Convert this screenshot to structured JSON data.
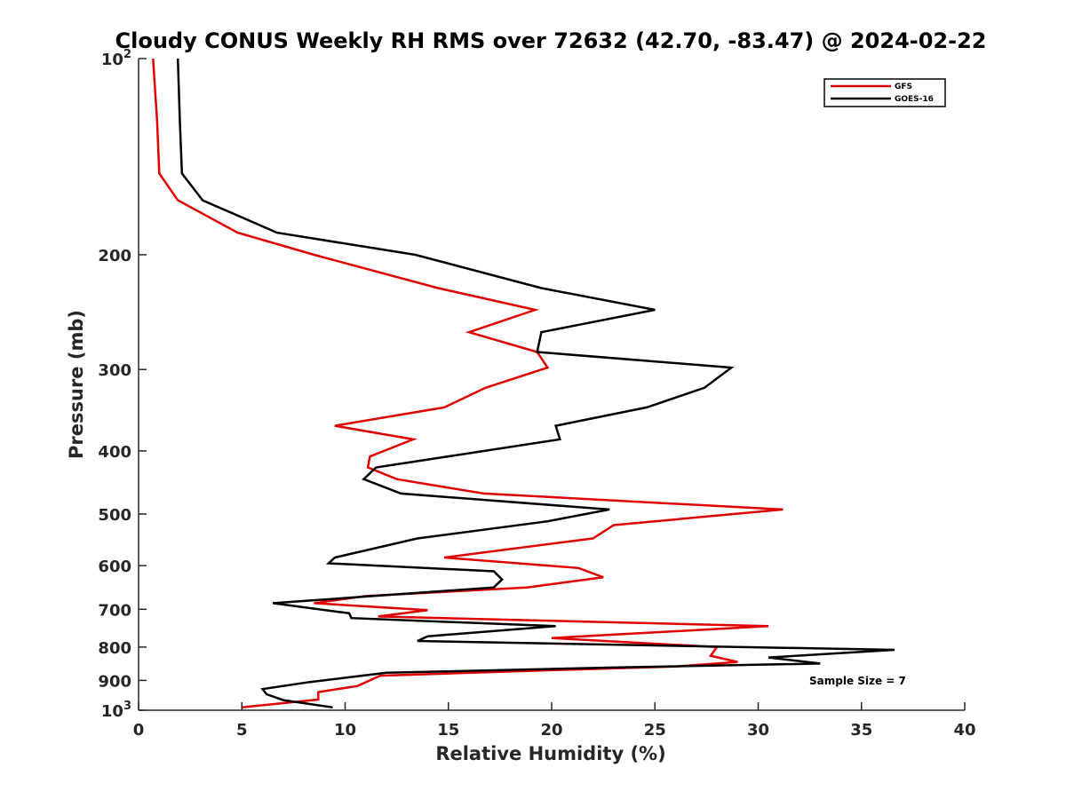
{
  "chart_data": {
    "type": "line",
    "title": "Cloudy CONUS Weekly RH RMS over 72632 (42.70, -83.47) @ 2024-02-22",
    "xlabel": "Relative Humidity (%)",
    "ylabel": "Pressure (mb)",
    "xlim": [
      0,
      40
    ],
    "ylim": [
      100,
      1000
    ],
    "y_scale": "log",
    "y_reversed": true,
    "grid": false,
    "legend_position": "top-right",
    "x_ticks": [
      0,
      5,
      10,
      15,
      20,
      25,
      30,
      35,
      40
    ],
    "y_ticks": [
      {
        "value": 100,
        "label": "10",
        "sup": "2"
      },
      {
        "value": 200,
        "label": "200",
        "sup": ""
      },
      {
        "value": 300,
        "label": "300",
        "sup": ""
      },
      {
        "value": 400,
        "label": "400",
        "sup": ""
      },
      {
        "value": 500,
        "label": "500",
        "sup": ""
      },
      {
        "value": 600,
        "label": "600",
        "sup": ""
      },
      {
        "value": 700,
        "label": "700",
        "sup": ""
      },
      {
        "value": 800,
        "label": "800",
        "sup": ""
      },
      {
        "value": 900,
        "label": "900",
        "sup": ""
      },
      {
        "value": 1000,
        "label": "10",
        "sup": "3"
      }
    ],
    "series": [
      {
        "name": "GFS",
        "color": "#e00000",
        "points": [
          [
            0.7,
            100
          ],
          [
            0.9,
            125
          ],
          [
            1.0,
            150
          ],
          [
            1.9,
            165
          ],
          [
            4.8,
            185
          ],
          [
            8.5,
            200
          ],
          [
            14.5,
            225
          ],
          [
            19.2,
            243
          ],
          [
            16.0,
            263
          ],
          [
            19.3,
            282
          ],
          [
            19.8,
            298
          ],
          [
            16.8,
            320
          ],
          [
            14.8,
            343
          ],
          [
            9.5,
            366
          ],
          [
            13.3,
            384
          ],
          [
            11.2,
            408
          ],
          [
            11.1,
            424
          ],
          [
            12.5,
            442
          ],
          [
            16.7,
            465
          ],
          [
            31.2,
            492
          ],
          [
            23.0,
            520
          ],
          [
            22.0,
            545
          ],
          [
            14.8,
            583
          ],
          [
            21.3,
            605
          ],
          [
            22.5,
            625
          ],
          [
            18.8,
            648
          ],
          [
            11.0,
            668
          ],
          [
            8.5,
            685
          ],
          [
            14.0,
            702
          ],
          [
            11.6,
            718
          ],
          [
            30.5,
            743
          ],
          [
            20.0,
            775
          ],
          [
            28.0,
            800
          ],
          [
            27.7,
            825
          ],
          [
            29.0,
            843
          ],
          [
            26.0,
            857
          ],
          [
            20.0,
            868
          ],
          [
            11.7,
            885
          ],
          [
            10.6,
            918
          ],
          [
            8.7,
            938
          ],
          [
            8.7,
            963
          ],
          [
            5.0,
            990
          ]
        ]
      },
      {
        "name": "GOES-16",
        "color": "#000000",
        "points": [
          [
            1.9,
            100
          ],
          [
            2.0,
            125
          ],
          [
            2.1,
            150
          ],
          [
            3.1,
            165
          ],
          [
            6.7,
            185
          ],
          [
            13.4,
            200
          ],
          [
            19.5,
            225
          ],
          [
            25.0,
            243
          ],
          [
            19.5,
            263
          ],
          [
            19.3,
            282
          ],
          [
            28.7,
            298
          ],
          [
            27.4,
            320
          ],
          [
            24.6,
            343
          ],
          [
            20.2,
            366
          ],
          [
            20.4,
            384
          ],
          [
            11.5,
            424
          ],
          [
            10.9,
            442
          ],
          [
            12.7,
            465
          ],
          [
            22.8,
            492
          ],
          [
            19.8,
            513
          ],
          [
            13.5,
            545
          ],
          [
            9.5,
            583
          ],
          [
            9.2,
            595
          ],
          [
            17.2,
            612
          ],
          [
            17.6,
            630
          ],
          [
            17.2,
            648
          ],
          [
            6.5,
            685
          ],
          [
            10.2,
            710
          ],
          [
            10.3,
            722
          ],
          [
            20.2,
            743
          ],
          [
            14.0,
            770
          ],
          [
            13.5,
            783
          ],
          [
            36.6,
            808
          ],
          [
            30.5,
            830
          ],
          [
            33.0,
            848
          ],
          [
            23.0,
            860
          ],
          [
            12.0,
            876
          ],
          [
            8.3,
            905
          ],
          [
            6.0,
            928
          ],
          [
            6.2,
            945
          ],
          [
            7.0,
            965
          ],
          [
            9.4,
            990
          ]
        ]
      }
    ],
    "annotation": "Sample Size = 7"
  }
}
